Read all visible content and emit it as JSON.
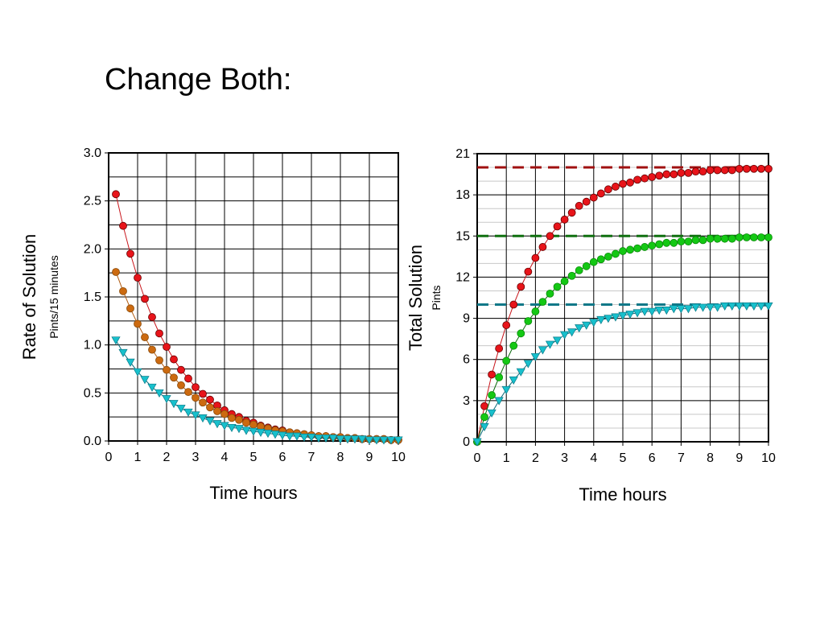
{
  "slide": {
    "title": "Change Both:"
  },
  "colors": {
    "red": "#e8141a",
    "orange": "#cc6a10",
    "green": "#14c814",
    "cyan": "#18c0cc",
    "red_line": "#c8141a",
    "orange_line": "#b05a10",
    "green_line": "#0a6a0a",
    "cyan_line": "#0a6a7a",
    "red_dash": "#a01010",
    "green_dash": "#107010",
    "cyan_dash": "#107888"
  },
  "chart_data": [
    {
      "type": "scatter",
      "title": "",
      "xlabel": "Time hours",
      "ylabel": "Rate of Solution",
      "ylabel_unit": "Pints/15 minutes",
      "xlim": [
        0,
        10
      ],
      "ylim": [
        0,
        3
      ],
      "xticks": [
        "0",
        "1",
        "2",
        "3",
        "4",
        "5",
        "6",
        "7",
        "8",
        "9",
        "10"
      ],
      "yticks": [
        "0.0",
        "0.5",
        "1.0",
        "1.5",
        "2.0",
        "2.5",
        "3.0"
      ],
      "grid": true,
      "series": [
        {
          "color": "red",
          "marker": "circle",
          "x": [
            0.25,
            0.5,
            0.75,
            1,
            1.25,
            1.5,
            1.75,
            2,
            2.25,
            2.5,
            2.75,
            3,
            3.25,
            3.5,
            3.75,
            4,
            4.25,
            4.5,
            4.75,
            5,
            5.25,
            5.5,
            5.75,
            6,
            6.25,
            6.5,
            6.75,
            7,
            7.25,
            7.5,
            7.75,
            8,
            8.25,
            8.5,
            8.75,
            9,
            9.25,
            9.5,
            9.75,
            10
          ],
          "y": [
            2.57,
            2.24,
            1.95,
            1.7,
            1.48,
            1.29,
            1.12,
            0.98,
            0.85,
            0.74,
            0.65,
            0.56,
            0.49,
            0.43,
            0.37,
            0.32,
            0.28,
            0.25,
            0.21,
            0.19,
            0.16,
            0.14,
            0.12,
            0.11,
            0.09,
            0.08,
            0.07,
            0.06,
            0.05,
            0.05,
            0.04,
            0.04,
            0.03,
            0.03,
            0.02,
            0.02,
            0.02,
            0.02,
            0.01,
            0.01
          ]
        },
        {
          "color": "orange",
          "marker": "circle",
          "x": [
            0.25,
            0.5,
            0.75,
            1,
            1.25,
            1.5,
            1.75,
            2,
            2.25,
            2.5,
            2.75,
            3,
            3.25,
            3.5,
            3.75,
            4,
            4.25,
            4.5,
            4.75,
            5,
            5.25,
            5.5,
            5.75,
            6,
            6.25,
            6.5,
            6.75,
            7,
            7.25,
            7.5,
            7.75,
            8,
            8.25,
            8.5,
            8.75,
            9,
            9.25,
            9.5,
            9.75,
            10
          ],
          "y": [
            1.76,
            1.56,
            1.38,
            1.22,
            1.08,
            0.95,
            0.84,
            0.74,
            0.66,
            0.58,
            0.51,
            0.45,
            0.4,
            0.35,
            0.31,
            0.28,
            0.24,
            0.22,
            0.19,
            0.17,
            0.15,
            0.13,
            0.11,
            0.1,
            0.09,
            0.08,
            0.07,
            0.06,
            0.05,
            0.05,
            0.04,
            0.04,
            0.03,
            0.03,
            0.02,
            0.02,
            0.02,
            0.02,
            0.01,
            0.01
          ]
        },
        {
          "color": "cyan",
          "marker": "triangle-down",
          "x": [
            0.25,
            0.5,
            0.75,
            1,
            1.25,
            1.5,
            1.75,
            2,
            2.25,
            2.5,
            2.75,
            3,
            3.25,
            3.5,
            3.75,
            4,
            4.25,
            4.5,
            4.75,
            5,
            5.25,
            5.5,
            5.75,
            6,
            6.25,
            6.5,
            6.75,
            7,
            7.25,
            7.5,
            7.75,
            8,
            8.25,
            8.5,
            8.75,
            9,
            9.25,
            9.5,
            9.75,
            10
          ],
          "y": [
            1.05,
            0.92,
            0.82,
            0.72,
            0.64,
            0.56,
            0.5,
            0.44,
            0.39,
            0.34,
            0.3,
            0.27,
            0.24,
            0.21,
            0.18,
            0.16,
            0.14,
            0.13,
            0.11,
            0.1,
            0.09,
            0.08,
            0.07,
            0.06,
            0.05,
            0.05,
            0.04,
            0.04,
            0.03,
            0.03,
            0.03,
            0.02,
            0.02,
            0.02,
            0.02,
            0.01,
            0.01,
            0.01,
            0.01,
            0.01
          ]
        }
      ]
    },
    {
      "type": "scatter",
      "title": "",
      "xlabel": "Time hours",
      "ylabel": "Total Solution",
      "ylabel_unit": "Pints",
      "xlim": [
        0,
        10
      ],
      "ylim": [
        0,
        21
      ],
      "xticks": [
        "0",
        "1",
        "2",
        "3",
        "4",
        "5",
        "6",
        "7",
        "8",
        "9",
        "10"
      ],
      "yticks": [
        "0",
        "3",
        "6",
        "9",
        "12",
        "15",
        "18",
        "21"
      ],
      "grid": true,
      "asymptotes": [
        {
          "y": 20,
          "color": "red_dash"
        },
        {
          "y": 15,
          "color": "green_dash"
        },
        {
          "y": 10,
          "color": "cyan_dash"
        }
      ],
      "series": [
        {
          "color": "red",
          "marker": "circle",
          "x": [
            0,
            0.25,
            0.5,
            0.75,
            1,
            1.25,
            1.5,
            1.75,
            2,
            2.25,
            2.5,
            2.75,
            3,
            3.25,
            3.5,
            3.75,
            4,
            4.25,
            4.5,
            4.75,
            5,
            5.25,
            5.5,
            5.75,
            6,
            6.25,
            6.5,
            6.75,
            7,
            7.25,
            7.5,
            7.75,
            8,
            8.25,
            8.5,
            8.75,
            9,
            9.25,
            9.5,
            9.75,
            10
          ],
          "y": [
            0,
            2.6,
            4.9,
            6.8,
            8.5,
            10,
            11.3,
            12.4,
            13.4,
            14.2,
            15,
            15.7,
            16.2,
            16.7,
            17.2,
            17.5,
            17.8,
            18.1,
            18.4,
            18.6,
            18.8,
            18.9,
            19.1,
            19.2,
            19.3,
            19.4,
            19.5,
            19.5,
            19.6,
            19.6,
            19.7,
            19.7,
            19.8,
            19.8,
            19.8,
            19.8,
            19.9,
            19.9,
            19.9,
            19.9,
            19.9
          ]
        },
        {
          "color": "green",
          "marker": "circle",
          "x": [
            0,
            0.25,
            0.5,
            0.75,
            1,
            1.25,
            1.5,
            1.75,
            2,
            2.25,
            2.5,
            2.75,
            3,
            3.25,
            3.5,
            3.75,
            4,
            4.25,
            4.5,
            4.75,
            5,
            5.25,
            5.5,
            5.75,
            6,
            6.25,
            6.5,
            6.75,
            7,
            7.25,
            7.5,
            7.75,
            8,
            8.25,
            8.5,
            8.75,
            9,
            9.25,
            9.5,
            9.75,
            10
          ],
          "y": [
            0,
            1.8,
            3.4,
            4.7,
            5.9,
            7,
            7.9,
            8.8,
            9.5,
            10.2,
            10.8,
            11.3,
            11.7,
            12.1,
            12.5,
            12.8,
            13.1,
            13.3,
            13.5,
            13.7,
            13.9,
            14,
            14.1,
            14.2,
            14.3,
            14.4,
            14.5,
            14.5,
            14.6,
            14.6,
            14.7,
            14.7,
            14.8,
            14.8,
            14.8,
            14.8,
            14.9,
            14.9,
            14.9,
            14.9,
            14.9
          ]
        },
        {
          "color": "cyan",
          "marker": "triangle-down",
          "x": [
            0,
            0.25,
            0.5,
            0.75,
            1,
            1.25,
            1.5,
            1.75,
            2,
            2.25,
            2.5,
            2.75,
            3,
            3.25,
            3.5,
            3.75,
            4,
            4.25,
            4.5,
            4.75,
            5,
            5.25,
            5.5,
            5.75,
            6,
            6.25,
            6.5,
            6.75,
            7,
            7.25,
            7.5,
            7.75,
            8,
            8.25,
            8.5,
            8.75,
            9,
            9.25,
            9.5,
            9.75,
            10
          ],
          "y": [
            0,
            1.1,
            2.1,
            3,
            3.8,
            4.5,
            5.1,
            5.7,
            6.2,
            6.7,
            7.1,
            7.4,
            7.8,
            8,
            8.3,
            8.5,
            8.7,
            8.9,
            9,
            9.1,
            9.2,
            9.3,
            9.4,
            9.5,
            9.5,
            9.6,
            9.6,
            9.7,
            9.7,
            9.7,
            9.8,
            9.8,
            9.8,
            9.8,
            9.9,
            9.9,
            9.9,
            9.9,
            9.9,
            9.9,
            9.9
          ]
        }
      ]
    }
  ]
}
